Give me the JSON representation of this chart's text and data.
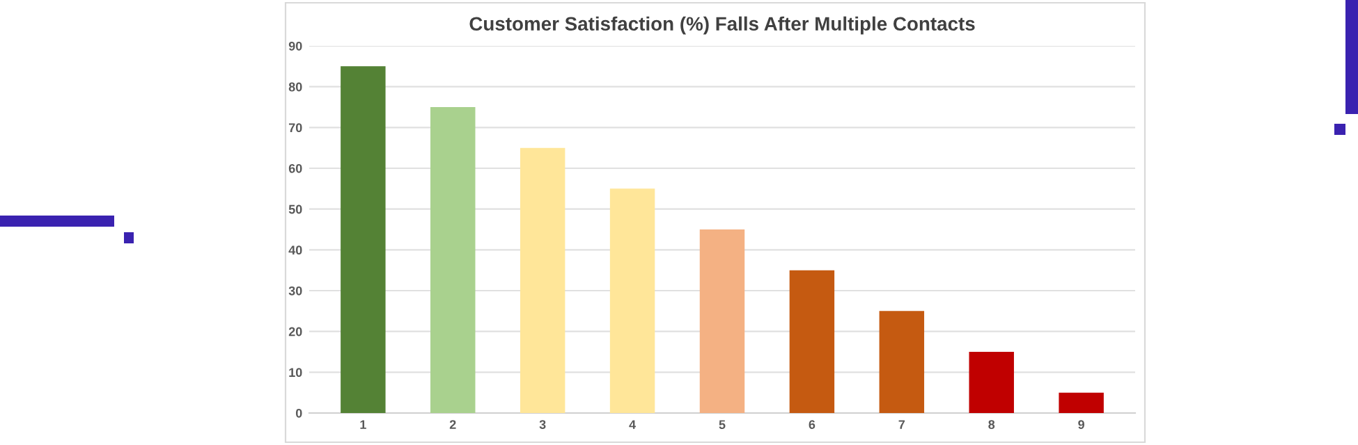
{
  "chart_data": {
    "type": "bar",
    "title": "Customer Satisfaction (%) Falls After Multiple Contacts",
    "categories": [
      "1",
      "2",
      "3",
      "4",
      "5",
      "6",
      "7",
      "8",
      "9"
    ],
    "values": [
      85,
      75,
      65,
      55,
      45,
      35,
      25,
      15,
      5
    ],
    "colors": [
      "#548235",
      "#a9d18e",
      "#ffe699",
      "#ffe699",
      "#f4b183",
      "#c55a11",
      "#c55a11",
      "#c00000",
      "#c00000"
    ],
    "ylim": [
      0,
      90
    ],
    "yticks": [
      0,
      10,
      20,
      30,
      40,
      50,
      60,
      70,
      80,
      90
    ],
    "grid": "y",
    "legend": false
  }
}
